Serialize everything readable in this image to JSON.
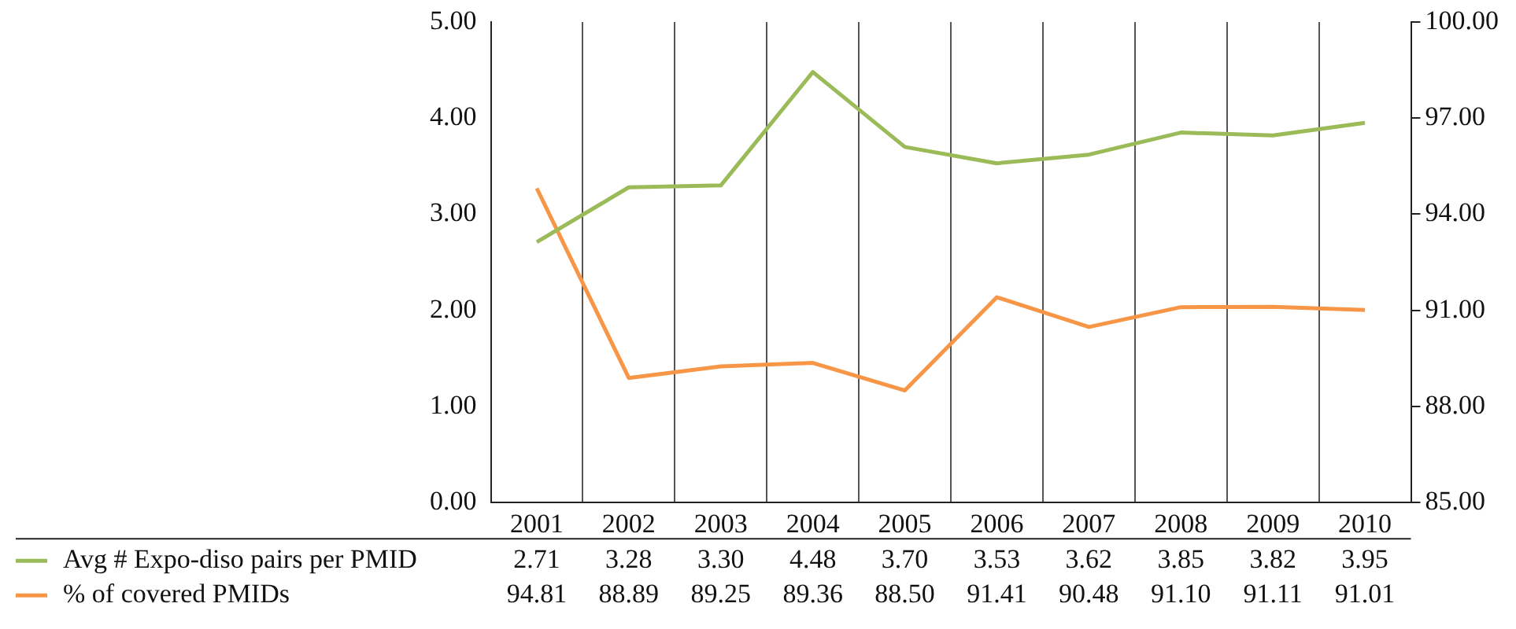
{
  "chart_data": {
    "type": "line",
    "categories": [
      "2001",
      "2002",
      "2003",
      "2004",
      "2005",
      "2006",
      "2007",
      "2008",
      "2009",
      "2010"
    ],
    "series": [
      {
        "name": "Avg # Expo-diso pairs per PMID",
        "color": "#9bbb59",
        "values": [
          2.71,
          3.28,
          3.3,
          4.48,
          3.7,
          3.53,
          3.62,
          3.85,
          3.82,
          3.95
        ],
        "value_labels": [
          "2.71",
          "3.28",
          "3.30",
          "4.48",
          "3.70",
          "3.53",
          "3.62",
          "3.85",
          "3.82",
          "3.95"
        ]
      },
      {
        "name": "% of covered PMIDs",
        "color": "#f79646",
        "axis": "y2",
        "values": [
          94.81,
          88.89,
          89.25,
          89.36,
          88.5,
          91.41,
          90.48,
          91.1,
          91.11,
          91.01
        ],
        "value_labels": [
          "94.81",
          "88.89",
          "89.25",
          "89.36",
          "88.50",
          "91.41",
          "90.48",
          "91.10",
          "91.11",
          "91.01"
        ]
      }
    ],
    "ylim": [
      0,
      5
    ],
    "yticks": [
      {
        "value": 0,
        "label": "0.00"
      },
      {
        "value": 1,
        "label": "1.00"
      },
      {
        "value": 2,
        "label": "2.00"
      },
      {
        "value": 3,
        "label": "3.00"
      },
      {
        "value": 4,
        "label": "4.00"
      },
      {
        "value": 5,
        "label": "5.00"
      }
    ],
    "y2lim": [
      85,
      100
    ],
    "y2ticks": [
      {
        "value": 85,
        "label": "85.00"
      },
      {
        "value": 88,
        "label": "88.00"
      },
      {
        "value": 91,
        "label": "91.00"
      },
      {
        "value": 94,
        "label": "94.00"
      },
      {
        "value": 97,
        "label": "97.00"
      },
      {
        "value": 100,
        "label": "100.00"
      }
    ],
    "grid": "x",
    "legend": "bottom",
    "marker": "none",
    "line_style": "solid"
  }
}
